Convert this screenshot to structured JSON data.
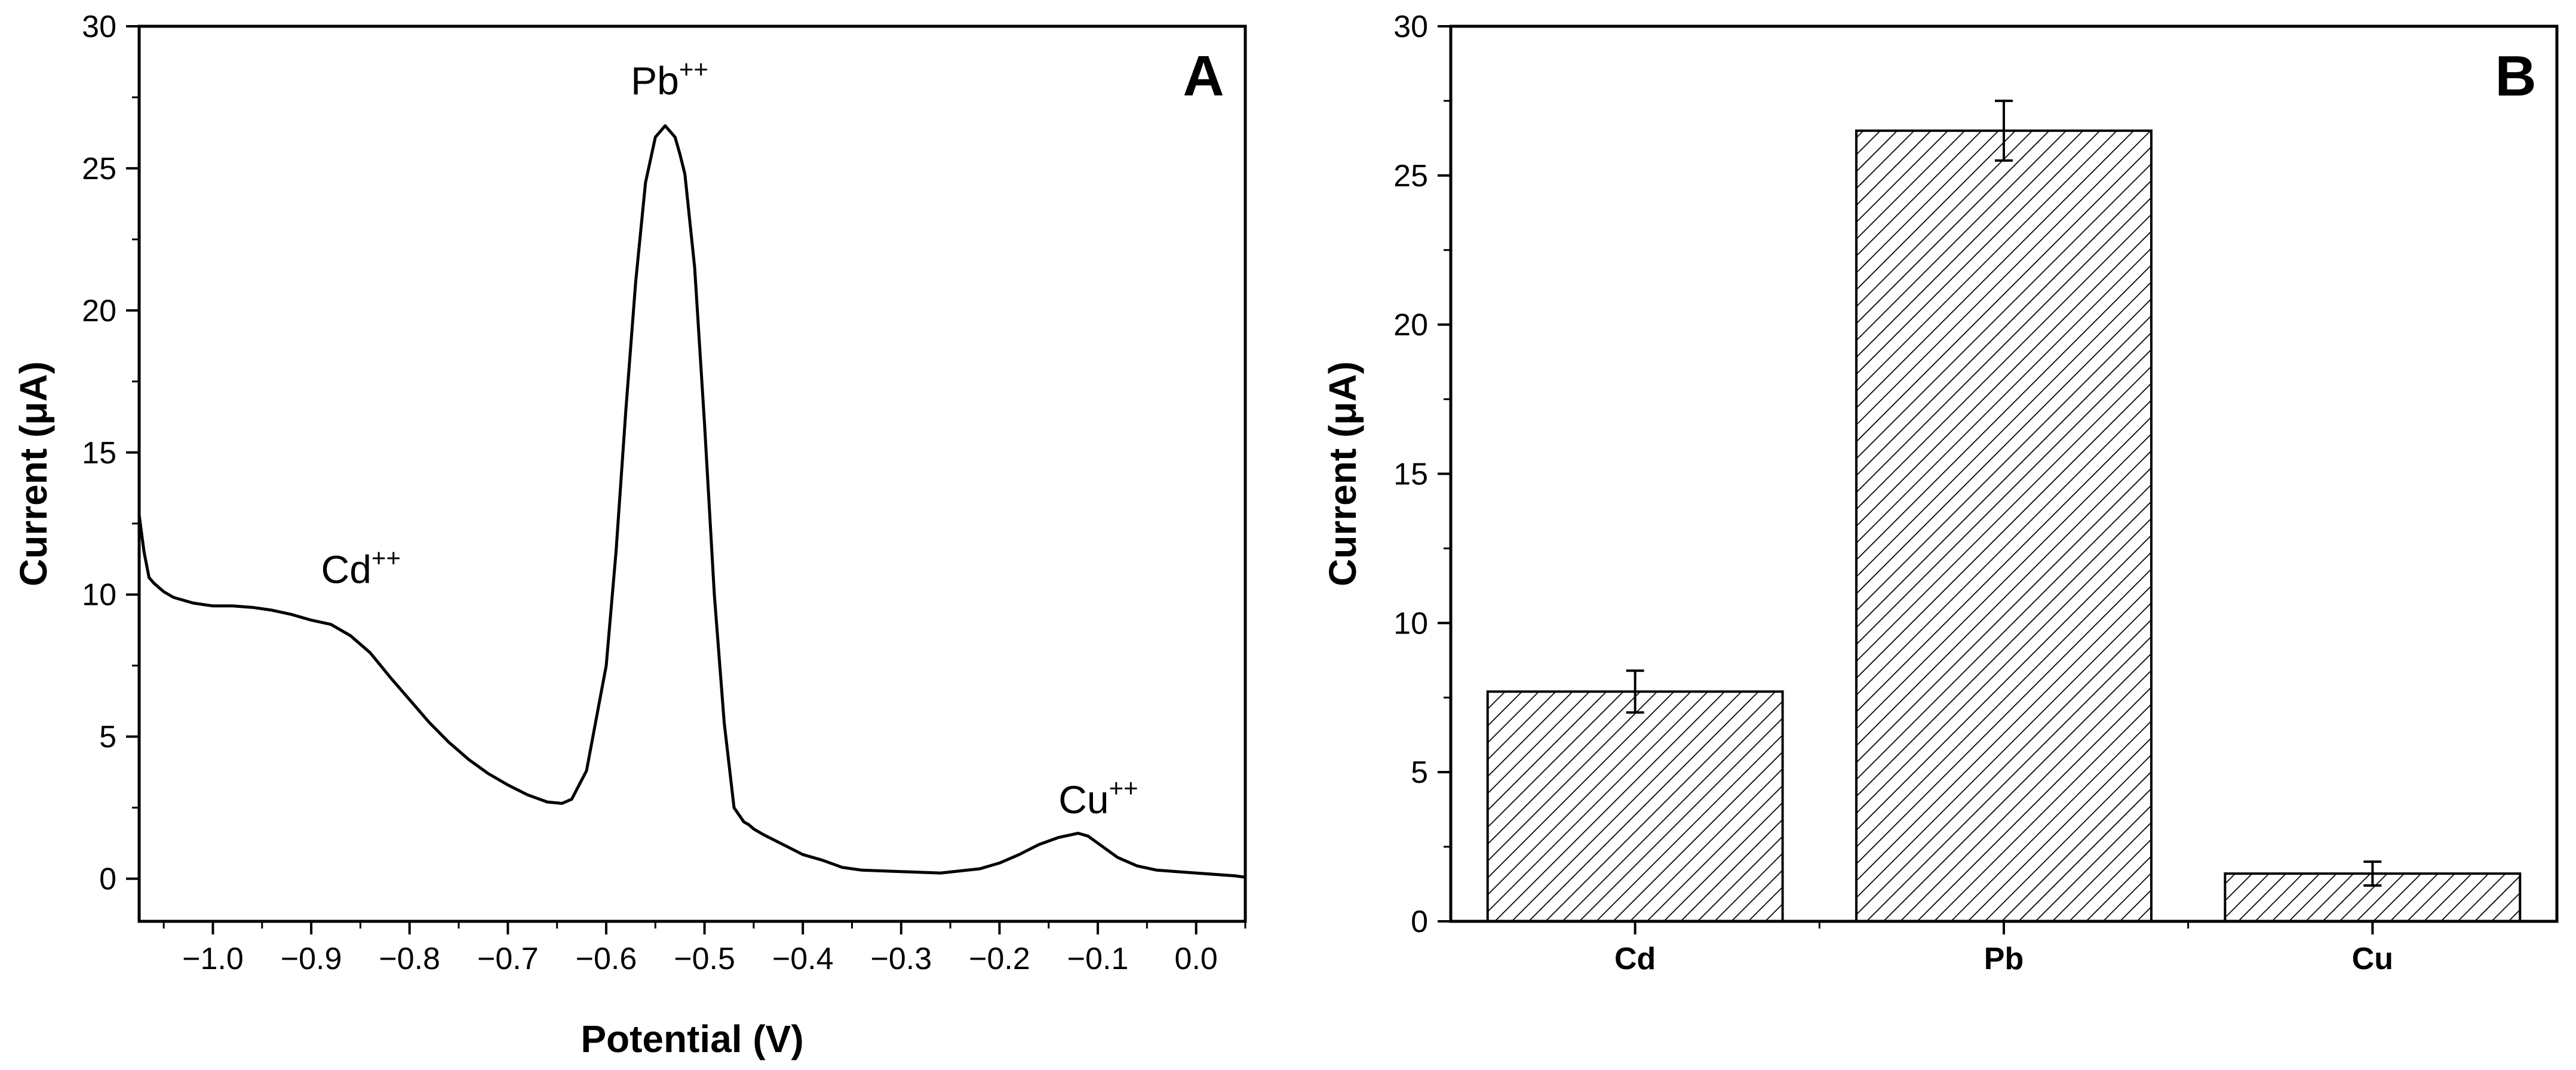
{
  "chart_data": [
    {
      "panel": "A",
      "type": "line",
      "xlabel": "Potential (V)",
      "ylabel": "Current (μA)",
      "xlim": [
        -1.075,
        0.05
      ],
      "ylim": [
        -1.5,
        30
      ],
      "xticks": [
        -1.0,
        -0.9,
        -0.8,
        -0.7,
        -0.6,
        -0.5,
        -0.4,
        -0.3,
        -0.2,
        -0.1,
        0.0
      ],
      "xtick_labels": [
        "−1.0",
        "−0.9",
        "−0.8",
        "−0.7",
        "−0.6",
        "−0.5",
        "−0.4",
        "−0.3",
        "−0.2",
        "−0.1",
        "0.0"
      ],
      "yticks": [
        0,
        5,
        10,
        15,
        20,
        25,
        30
      ],
      "ytick_labels": [
        "0",
        "5",
        "10",
        "15",
        "20",
        "25",
        "30"
      ],
      "series": [
        {
          "name": "current",
          "x": [
            -1.075,
            -1.07,
            -1.065,
            -1.06,
            -1.05,
            -1.04,
            -1.02,
            -1.0,
            -0.98,
            -0.96,
            -0.94,
            -0.92,
            -0.9,
            -0.88,
            -0.86,
            -0.84,
            -0.82,
            -0.8,
            -0.78,
            -0.76,
            -0.74,
            -0.72,
            -0.7,
            -0.68,
            -0.66,
            -0.645,
            -0.635,
            -0.62,
            -0.6,
            -0.59,
            -0.58,
            -0.57,
            -0.56,
            -0.55,
            -0.54,
            -0.53,
            -0.525,
            -0.52,
            -0.51,
            -0.5,
            -0.49,
            -0.48,
            -0.47,
            -0.46,
            -0.455,
            -0.45,
            -0.44,
            -0.42,
            -0.4,
            -0.38,
            -0.36,
            -0.34,
            -0.3,
            -0.26,
            -0.22,
            -0.2,
            -0.18,
            -0.16,
            -0.14,
            -0.12,
            -0.11,
            -0.1,
            -0.08,
            -0.06,
            -0.04,
            -0.02,
            0.0,
            0.02,
            0.04,
            0.05
          ],
          "y": [
            12.8,
            11.5,
            10.6,
            10.4,
            10.1,
            9.9,
            9.7,
            9.6,
            9.6,
            9.55,
            9.45,
            9.3,
            9.1,
            8.95,
            8.55,
            7.95,
            7.1,
            6.3,
            5.5,
            4.8,
            4.2,
            3.7,
            3.3,
            2.95,
            2.7,
            2.65,
            2.8,
            3.8,
            7.5,
            11.5,
            16.5,
            21.0,
            24.5,
            26.1,
            26.5,
            26.1,
            25.5,
            24.8,
            21.5,
            16.0,
            10.0,
            5.5,
            2.5,
            2.0,
            1.9,
            1.75,
            1.55,
            1.2,
            0.85,
            0.65,
            0.4,
            0.3,
            0.25,
            0.2,
            0.35,
            0.55,
            0.85,
            1.2,
            1.45,
            1.6,
            1.5,
            1.25,
            0.75,
            0.45,
            0.3,
            0.25,
            0.2,
            0.15,
            0.1,
            0.05
          ]
        }
      ],
      "annotations": [
        {
          "base": "Cd",
          "sup": "++",
          "x": -0.89,
          "y": 10.4
        },
        {
          "base": "Pb",
          "sup": "++",
          "x": -0.575,
          "y": 27.6
        },
        {
          "base": "Cu",
          "sup": "++",
          "x": -0.14,
          "y": 2.3
        }
      ]
    },
    {
      "panel": "B",
      "type": "bar",
      "xlabel": "",
      "ylabel": "Current (μA)",
      "ylim": [
        0,
        30
      ],
      "yticks": [
        0,
        5,
        10,
        15,
        20,
        25,
        30
      ],
      "ytick_labels": [
        "0",
        "5",
        "10",
        "15",
        "20",
        "25",
        "30"
      ],
      "categories": [
        "Cd",
        "Pb",
        "Cu"
      ],
      "values": [
        7.7,
        26.5,
        1.6
      ],
      "errors": [
        0.7,
        1.0,
        0.4
      ],
      "pattern": "diagonal-hatch"
    }
  ]
}
